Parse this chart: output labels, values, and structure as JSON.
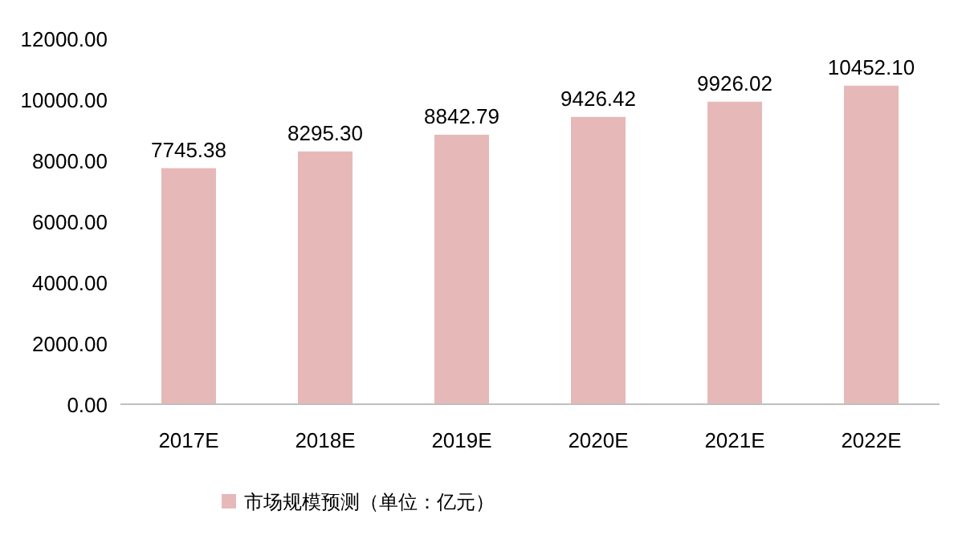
{
  "chart_data": {
    "type": "bar",
    "categories": [
      "2017E",
      "2018E",
      "2019E",
      "2020E",
      "2021E",
      "2022E"
    ],
    "series": [
      {
        "name": "市场规模预测（单位：亿元）",
        "color": "#e6b9b8",
        "values": [
          7745.38,
          8295.3,
          8842.79,
          9426.42,
          9926.02,
          10452.1
        ],
        "value_labels": [
          "7745.38",
          "8295.30",
          "8842.79",
          "9426.42",
          "9926.02",
          "10452.10"
        ]
      }
    ],
    "ylim": [
      0,
      12000
    ],
    "yticks": [
      {
        "value": 0,
        "label": "0.00"
      },
      {
        "value": 2000,
        "label": "2000.00"
      },
      {
        "value": 4000,
        "label": "4000.00"
      },
      {
        "value": 6000,
        "label": "6000.00"
      },
      {
        "value": 8000,
        "label": "8000.00"
      },
      {
        "value": 10000,
        "label": "10000.00"
      },
      {
        "value": 12000,
        "label": "12000.00"
      }
    ],
    "legend": "bottom"
  }
}
